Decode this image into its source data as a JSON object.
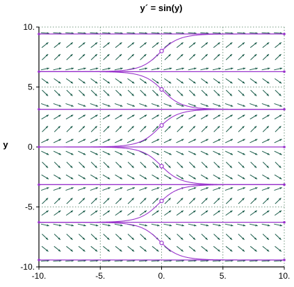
{
  "chart_data": {
    "type": "line",
    "title": "y´ = sin(y)",
    "xlabel": "",
    "ylabel": "y",
    "xlim": [
      -10,
      10
    ],
    "ylim": [
      -10,
      10
    ],
    "x_ticks": [
      -10,
      -5,
      0,
      5,
      10
    ],
    "y_ticks": [
      -10,
      -5,
      0,
      5,
      10
    ],
    "x_tick_labels": [
      "-10.",
      "-5.",
      "0.",
      "5.",
      "10."
    ],
    "y_tick_labels": [
      "-10.",
      "-5.",
      "0.",
      "5.",
      "10."
    ],
    "grid": true,
    "direction_field": {
      "equation": "sin(y)",
      "nx": 20,
      "ny": 20
    },
    "equilibria": [
      -9.42,
      -6.28,
      -3.14,
      0,
      3.14,
      6.28,
      9.42
    ],
    "solutions": [
      {
        "x0": 0,
        "y0": 8.0
      },
      {
        "x0": 0,
        "y0": 4.8
      },
      {
        "x0": 0,
        "y0": 1.8
      },
      {
        "x0": 0,
        "y0": -1.6
      },
      {
        "x0": 0,
        "y0": -4.5
      },
      {
        "x0": 0,
        "y0": -8.0
      }
    ],
    "colors": {
      "slope": "#1a5c4a",
      "solution": "#9933cc",
      "grid": "#4a7a5a",
      "axis": "#000000"
    }
  }
}
